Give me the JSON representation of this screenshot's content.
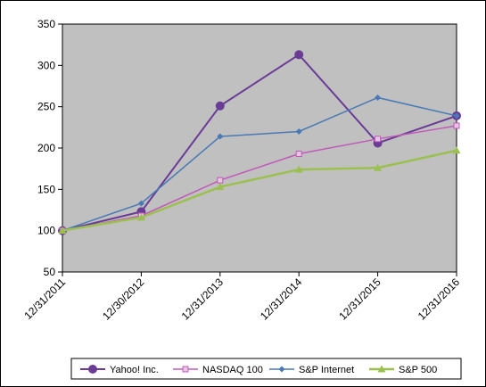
{
  "chart_data": {
    "type": "line",
    "categories": [
      "12/31/2011",
      "12/30/2012",
      "12/31/2013",
      "12/31/2014",
      "12/31/2015",
      "12/31/2016"
    ],
    "ylim": [
      50,
      350
    ],
    "yticks": [
      50,
      100,
      150,
      200,
      250,
      300,
      350
    ],
    "grid": false,
    "plot_background": "#c0c0c0",
    "legend_position": "bottom",
    "series": [
      {
        "name": "Yahoo! Inc.",
        "color": "#6a3c96",
        "marker": "circle",
        "values": [
          100,
          123,
          251,
          313,
          206,
          239
        ]
      },
      {
        "name": "NASDAQ 100",
        "color": "#c05ab8",
        "marker": "square",
        "values": [
          100,
          118,
          161,
          193,
          211,
          227
        ]
      },
      {
        "name": "S&P Internet",
        "color": "#4a7ab5",
        "marker": "diamond",
        "values": [
          100,
          133,
          214,
          220,
          261,
          239
        ]
      },
      {
        "name": "S&P 500",
        "color": "#9bc050",
        "marker": "triangle",
        "values": [
          100,
          116,
          153,
          174,
          176,
          197
        ]
      }
    ]
  }
}
